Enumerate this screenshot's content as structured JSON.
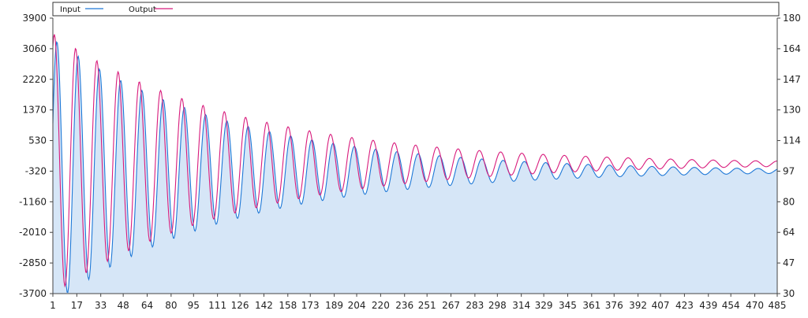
{
  "colors": {
    "input_line": "#1e78d7",
    "output_line": "#d81b7c",
    "area_fill": "#d6e6f7",
    "axis": "#444444"
  },
  "chart_data": {
    "type": "line",
    "legend": {
      "placement": "top",
      "entries": [
        "Input",
        "Output"
      ]
    },
    "x_ticks": [
      1,
      17,
      33,
      48,
      64,
      80,
      95,
      111,
      126,
      142,
      158,
      173,
      189,
      204,
      220,
      236,
      251,
      267,
      283,
      298,
      314,
      329,
      345,
      361,
      376,
      392,
      407,
      423,
      439,
      454,
      470,
      485
    ],
    "xlim": [
      1,
      485
    ],
    "y_left_ticks": [
      "3900",
      "3060",
      "2220",
      "1370",
      "530",
      "-320",
      "-1160",
      "-2010",
      "-2850",
      "-3700"
    ],
    "y_left_range": [
      -3700,
      3900
    ],
    "y_right_ticks": [
      "180",
      "164",
      "147",
      "130",
      "114",
      "97",
      "80",
      "64",
      "47",
      "30"
    ],
    "y_right_range": [
      30,
      180
    ],
    "series": [
      {
        "name": "Input",
        "axis": "left",
        "fill": true,
        "signal": {
          "amplitude": 3650,
          "offset": -320,
          "decay_tau": 120,
          "period": 14.2,
          "phase": -1.2,
          "start": 1,
          "end": 485
        }
      },
      {
        "name": "Output",
        "axis": "left",
        "fill": false,
        "signal": {
          "amplitude": 3600,
          "offset": -120,
          "decay_tau": 125,
          "period": 14.2,
          "phase": -0.45,
          "start": 1,
          "end": 485
        }
      }
    ],
    "grid": false
  }
}
